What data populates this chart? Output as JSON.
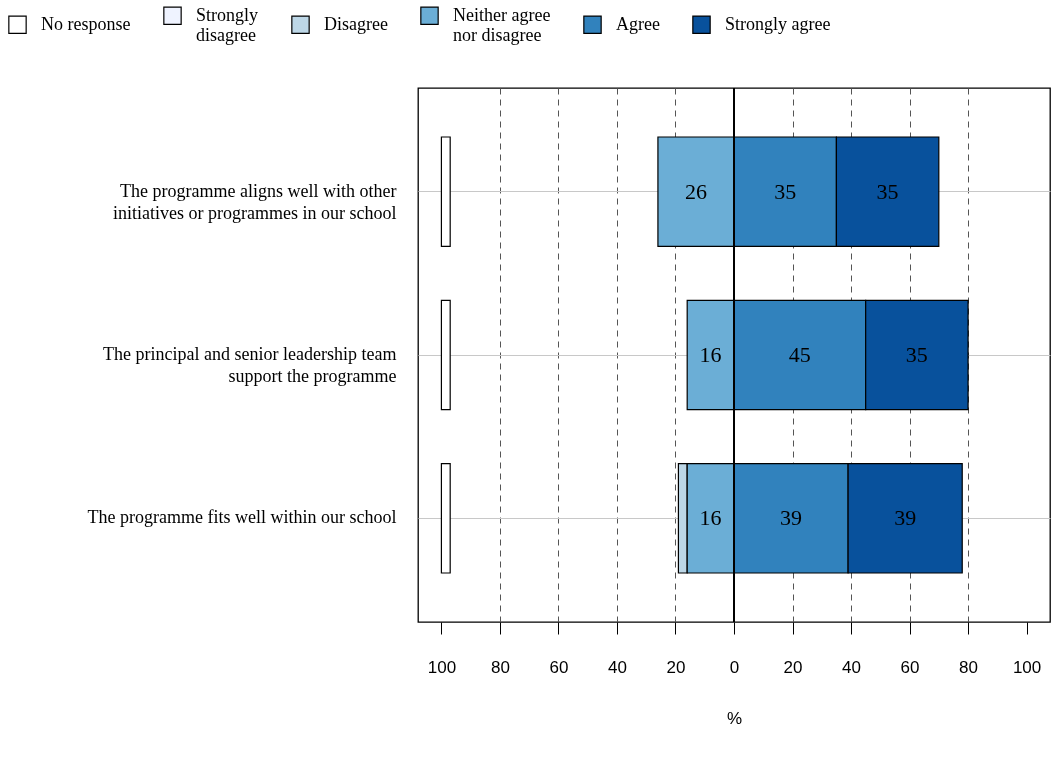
{
  "chart_data": {
    "type": "bar",
    "orientation": "horizontal",
    "categories": [
      "The programme aligns well with other initiatives or programmes in our school",
      "The principal and senior leadership team support the programme",
      "The programme fits well within our school"
    ],
    "xlabel": "%",
    "xlim": [
      -108,
      108
    ],
    "xticks": [
      {
        "value": -100,
        "label": "100"
      },
      {
        "value": -80,
        "label": "80"
      },
      {
        "value": -60,
        "label": "60"
      },
      {
        "value": -40,
        "label": "40"
      },
      {
        "value": -20,
        "label": "20"
      },
      0,
      20,
      40,
      60,
      80,
      100
    ],
    "grid": true,
    "legend": "top",
    "ref_lines": [
      {
        "axis": "x",
        "value": 0
      }
    ],
    "series": [
      {
        "name": "No response",
        "color": "#ffffff",
        "base": [
          -100,
          -100,
          -100
        ],
        "values": [
          3,
          3,
          3
        ]
      },
      {
        "name": "Strongly disagree",
        "color": "#eff3ff",
        "values": [
          null,
          null,
          null
        ]
      },
      {
        "name": "Disagree",
        "color": "#bdd7e7",
        "base": [
          null,
          null,
          -19
        ],
        "values": [
          null,
          null,
          3
        ]
      },
      {
        "name": "Neither agree nor disagree",
        "color": "#6baed6",
        "base": [
          -26,
          -16,
          -16
        ],
        "values": [
          26,
          16,
          16
        ],
        "value_labels": [
          "26",
          "16",
          "16"
        ]
      },
      {
        "name": "Agree",
        "color": "#3182bd",
        "base": [
          0,
          0,
          0
        ],
        "values": [
          35,
          45,
          39
        ],
        "value_labels": [
          "35",
          "45",
          "39"
        ]
      },
      {
        "name": "Strongly agree",
        "color": "#08519c",
        "base": [
          35,
          45,
          39
        ],
        "values": [
          35,
          35,
          39
        ],
        "value_labels": [
          "35",
          "35",
          "39"
        ]
      }
    ]
  }
}
